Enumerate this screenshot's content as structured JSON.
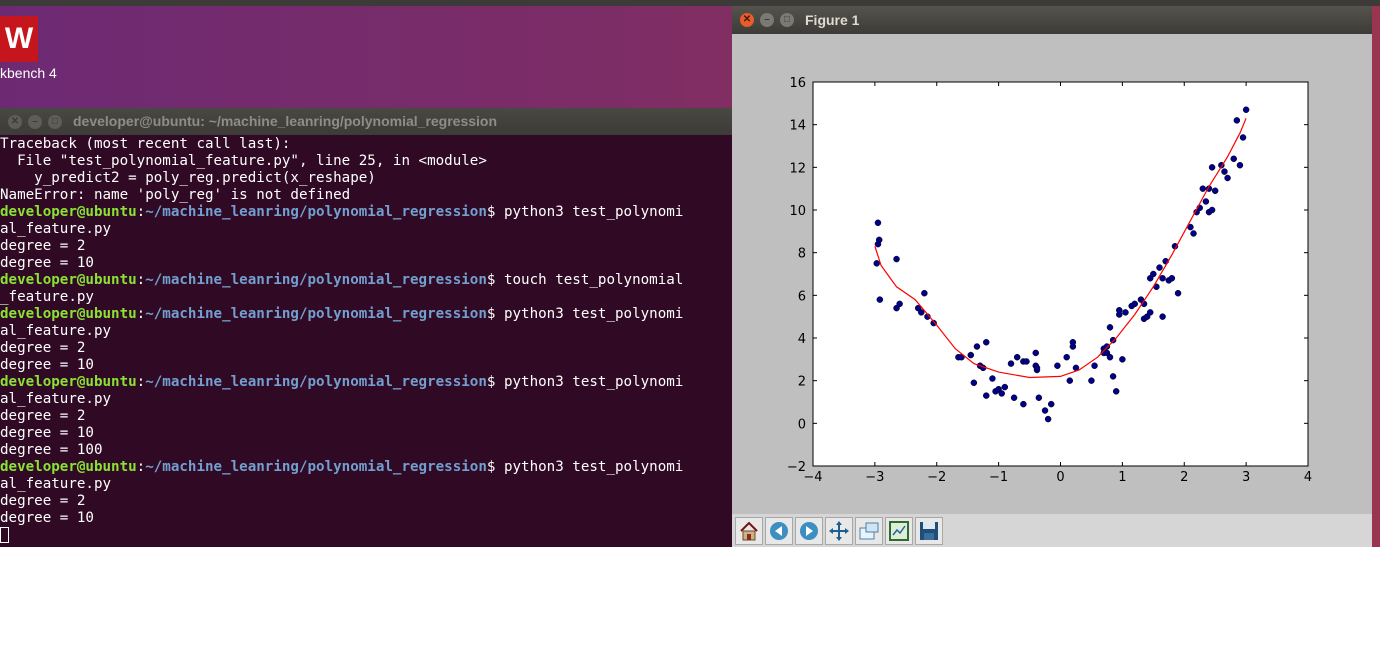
{
  "desktop": {
    "icon_letter": "W",
    "icon_label": "kbench 4"
  },
  "terminal": {
    "title": "developer@ubuntu: ~/machine_leanring/polynomial_regression",
    "lines": [
      {
        "text": "Traceback (most recent call last):"
      },
      {
        "text": "  File \"test_polynomial_feature.py\", line 25, in <module>"
      },
      {
        "text": "    y_predict2 = poly_reg.predict(x_reshape)"
      },
      {
        "text": "NameError: name 'poly_reg' is not defined"
      },
      {
        "user": "developer@ubuntu",
        "path": "~/machine_leanring/polynomial_regression",
        "cmd": "$ python3 test_polynomi"
      },
      {
        "text": "al_feature.py"
      },
      {
        "text": "degree = 2"
      },
      {
        "text": "degree = 10"
      },
      {
        "user": "developer@ubuntu",
        "path": "~/machine_leanring/polynomial_regression",
        "cmd": "$ touch test_polynomial"
      },
      {
        "text": "_feature.py"
      },
      {
        "user": "developer@ubuntu",
        "path": "~/machine_leanring/polynomial_regression",
        "cmd": "$ python3 test_polynomi"
      },
      {
        "text": "al_feature.py"
      },
      {
        "text": "degree = 2"
      },
      {
        "text": "degree = 10"
      },
      {
        "user": "developer@ubuntu",
        "path": "~/machine_leanring/polynomial_regression",
        "cmd": "$ python3 test_polynomi"
      },
      {
        "text": "al_feature.py"
      },
      {
        "text": "degree = 2"
      },
      {
        "text": "degree = 10"
      },
      {
        "text": "degree = 100"
      },
      {
        "user": "developer@ubuntu",
        "path": "~/machine_leanring/polynomial_regression",
        "cmd": "$ python3 test_polynomi"
      },
      {
        "text": "al_feature.py"
      },
      {
        "text": "degree = 2"
      },
      {
        "text": "degree = 10"
      }
    ]
  },
  "figure": {
    "title": "Figure 1",
    "toolbar": [
      {
        "name": "home-icon"
      },
      {
        "name": "back-icon"
      },
      {
        "name": "forward-icon"
      },
      {
        "name": "pan-icon"
      },
      {
        "name": "zoom-icon"
      },
      {
        "name": "subplots-icon"
      },
      {
        "name": "save-icon"
      }
    ]
  },
  "chart_data": {
    "type": "scatter",
    "xlim": [
      -4,
      4
    ],
    "ylim": [
      -2,
      16
    ],
    "xticks": [
      -4,
      -3,
      -2,
      -1,
      0,
      1,
      2,
      3,
      4
    ],
    "yticks": [
      -2,
      0,
      2,
      4,
      6,
      8,
      10,
      12,
      14,
      16
    ],
    "xtick_labels": [
      "−4",
      "−3",
      "−2",
      "−1",
      "0",
      "1",
      "2",
      "3",
      "4"
    ],
    "ytick_labels": [
      "−2",
      "0",
      "2",
      "4",
      "6",
      "8",
      "10",
      "12",
      "14",
      "16"
    ],
    "grid": false,
    "point_color": "#00008b",
    "line_color": "#ff0000",
    "points": [
      [
        -2.95,
        9.4
      ],
      [
        -2.95,
        8.4
      ],
      [
        -2.93,
        8.6
      ],
      [
        -2.97,
        7.5
      ],
      [
        -2.92,
        5.8
      ],
      [
        -2.65,
        7.7
      ],
      [
        -2.65,
        5.4
      ],
      [
        -2.6,
        5.6
      ],
      [
        -2.3,
        5.4
      ],
      [
        -2.25,
        5.2
      ],
      [
        -2.2,
        6.1
      ],
      [
        -2.15,
        5.0
      ],
      [
        -2.05,
        4.7
      ],
      [
        -1.65,
        3.1
      ],
      [
        -1.6,
        3.1
      ],
      [
        -1.45,
        3.2
      ],
      [
        -1.4,
        1.9
      ],
      [
        -1.35,
        3.6
      ],
      [
        -1.3,
        2.7
      ],
      [
        -1.25,
        2.6
      ],
      [
        -1.2,
        3.8
      ],
      [
        -1.2,
        1.3
      ],
      [
        -1.1,
        2.1
      ],
      [
        -1.05,
        1.5
      ],
      [
        -1.0,
        1.6
      ],
      [
        -0.95,
        1.4
      ],
      [
        -0.9,
        1.7
      ],
      [
        -0.8,
        2.8
      ],
      [
        -0.75,
        1.2
      ],
      [
        -0.7,
        3.1
      ],
      [
        -0.6,
        2.9
      ],
      [
        -0.6,
        0.9
      ],
      [
        -0.55,
        2.9
      ],
      [
        -0.4,
        3.3
      ],
      [
        -0.4,
        2.7
      ],
      [
        -0.38,
        2.5
      ],
      [
        -0.38,
        2.6
      ],
      [
        -0.35,
        1.2
      ],
      [
        -0.25,
        0.6
      ],
      [
        -0.2,
        0.2
      ],
      [
        -0.15,
        0.9
      ],
      [
        -0.05,
        2.7
      ],
      [
        0.1,
        3.1
      ],
      [
        0.15,
        2.0
      ],
      [
        0.2,
        3.6
      ],
      [
        0.2,
        3.8
      ],
      [
        0.25,
        2.6
      ],
      [
        0.5,
        2.0
      ],
      [
        0.55,
        2.7
      ],
      [
        0.7,
        3.5
      ],
      [
        0.7,
        3.3
      ],
      [
        0.75,
        3.6
      ],
      [
        0.75,
        3.3
      ],
      [
        0.8,
        4.5
      ],
      [
        0.8,
        3.1
      ],
      [
        0.85,
        2.2
      ],
      [
        0.85,
        3.9
      ],
      [
        0.9,
        1.5
      ],
      [
        0.95,
        5.1
      ],
      [
        0.95,
        5.3
      ],
      [
        1.0,
        3.0
      ],
      [
        1.05,
        5.2
      ],
      [
        1.15,
        5.5
      ],
      [
        1.2,
        5.6
      ],
      [
        1.3,
        5.8
      ],
      [
        1.35,
        5.6
      ],
      [
        1.35,
        4.9
      ],
      [
        1.4,
        5.0
      ],
      [
        1.45,
        6.8
      ],
      [
        1.45,
        5.2
      ],
      [
        1.5,
        7.0
      ],
      [
        1.55,
        6.4
      ],
      [
        1.6,
        7.3
      ],
      [
        1.65,
        5.0
      ],
      [
        1.65,
        6.8
      ],
      [
        1.7,
        7.6
      ],
      [
        1.75,
        6.7
      ],
      [
        1.8,
        6.8
      ],
      [
        1.85,
        8.3
      ],
      [
        1.9,
        6.1
      ],
      [
        2.1,
        9.2
      ],
      [
        2.15,
        8.9
      ],
      [
        2.2,
        9.9
      ],
      [
        2.25,
        10.1
      ],
      [
        2.3,
        11.0
      ],
      [
        2.35,
        10.4
      ],
      [
        2.4,
        9.9
      ],
      [
        2.4,
        11.0
      ],
      [
        2.45,
        10.0
      ],
      [
        2.45,
        12.0
      ],
      [
        2.5,
        10.9
      ],
      [
        2.6,
        12.1
      ],
      [
        2.65,
        11.8
      ],
      [
        2.7,
        11.5
      ],
      [
        2.8,
        12.4
      ],
      [
        2.85,
        14.2
      ],
      [
        2.9,
        12.1
      ],
      [
        2.95,
        13.4
      ],
      [
        3.0,
        14.7
      ]
    ],
    "fit_line": [
      [
        -3.0,
        8.3
      ],
      [
        -2.9,
        7.4
      ],
      [
        -2.65,
        6.4
      ],
      [
        -2.35,
        5.8
      ],
      [
        -2.0,
        4.6
      ],
      [
        -1.7,
        3.5
      ],
      [
        -1.4,
        2.8
      ],
      [
        -1.0,
        2.4
      ],
      [
        -0.5,
        2.15
      ],
      [
        0.0,
        2.2
      ],
      [
        0.3,
        2.5
      ],
      [
        0.6,
        3.1
      ],
      [
        0.9,
        4.0
      ],
      [
        1.2,
        5.1
      ],
      [
        1.5,
        6.4
      ],
      [
        1.8,
        7.9
      ],
      [
        2.1,
        9.5
      ],
      [
        2.4,
        11.1
      ],
      [
        2.7,
        12.5
      ],
      [
        2.9,
        13.6
      ],
      [
        3.0,
        14.3
      ]
    ]
  }
}
